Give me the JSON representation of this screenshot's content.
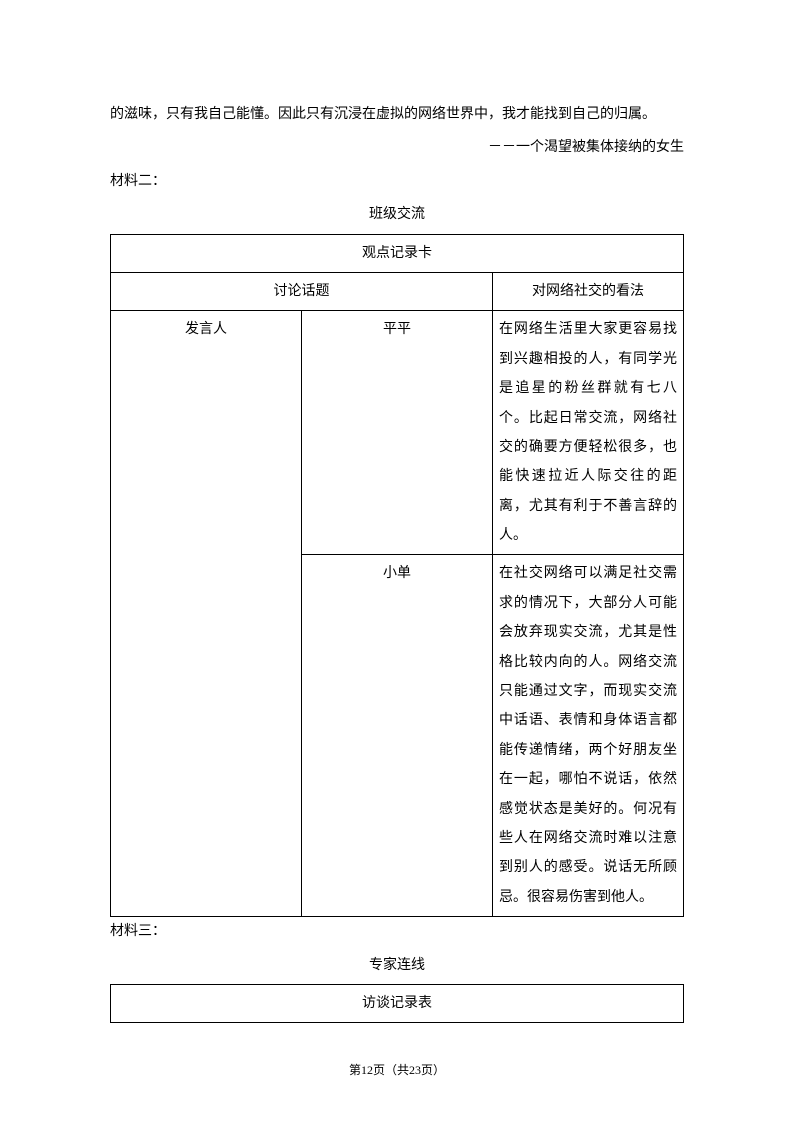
{
  "intro": "的滋味，只有我自己能懂。因此只有沉浸在虚拟的网络世界中，我才能找到自己的归属。",
  "signature": "－－一个渴望被集体接纳的女生",
  "section2_label": "材料二：",
  "table1": {
    "title": "班级交流",
    "header_full": "观点记录卡",
    "col_topic": "讨论话题",
    "col_opinion": "对网络社交的看法",
    "speaker_label": "发言人",
    "speakers": [
      {
        "name": "平平",
        "content": "在网络生活里大家更容易找到兴趣相投的人，有同学光是追星的粉丝群就有七八个。比起日常交流，网络社交的确要方便轻松很多，也能快速拉近人际交往的距离，尤其有利于不善言辞的人。"
      },
      {
        "name": "小单",
        "content": "在社交网络可以满足社交需求的情况下，大部分人可能会放弃现实交流，尤其是性格比较内向的人。网络交流只能通过文字，而现实交流中话语、表情和身体语言都能传递情绪，两个好朋友坐在一起，哪怕不说话，依然感觉状态是美好的。何况有些人在网络交流时难以注意到别人的感受。说话无所顾忌。很容易伤害到他人。"
      }
    ]
  },
  "section3_label": "材料三：",
  "table2": {
    "title": "专家连线",
    "header_full": "访谈记录表"
  },
  "footer": {
    "page_current": "12",
    "page_total": "23",
    "prefix": "第",
    "suffix_page": "页",
    "of_open": "（共",
    "of_close": "页）"
  }
}
